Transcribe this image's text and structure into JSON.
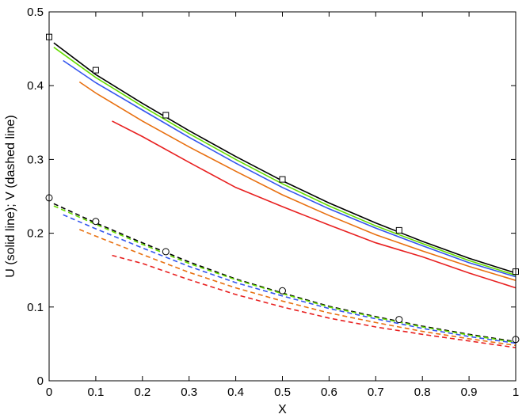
{
  "chart_data": {
    "type": "line",
    "xlabel": "X",
    "ylabel": "U (solid line); V (dashed line)",
    "xlim": [
      0,
      1
    ],
    "ylim": [
      0,
      0.5
    ],
    "xticks": [
      "0",
      "0.1",
      "0.2",
      "0.3",
      "0.4",
      "0.5",
      "0.6",
      "0.7",
      "0.8",
      "0.9",
      "1"
    ],
    "yticks": [
      "0",
      "0.1",
      "0.2",
      "0.3",
      "0.4",
      "0.5"
    ],
    "grid": false,
    "series": [
      {
        "kind": "U",
        "style": "solid",
        "color": "#000000",
        "x": [
          0.01,
          0.1,
          0.2,
          0.3,
          0.4,
          0.5,
          0.6,
          0.7,
          0.8,
          0.9,
          1.0
        ],
        "y": [
          0.458,
          0.415,
          0.376,
          0.339,
          0.304,
          0.271,
          0.241,
          0.214,
          0.189,
          0.166,
          0.146
        ]
      },
      {
        "kind": "U",
        "style": "solid",
        "color": "#66dd00",
        "x": [
          0.01,
          0.1,
          0.2,
          0.3,
          0.4,
          0.5,
          0.6,
          0.7,
          0.8,
          0.9,
          1.0
        ],
        "y": [
          0.452,
          0.411,
          0.372,
          0.335,
          0.3,
          0.267,
          0.237,
          0.21,
          0.186,
          0.163,
          0.143
        ]
      },
      {
        "kind": "U",
        "style": "solid",
        "color": "#3355ee",
        "x": [
          0.03,
          0.1,
          0.2,
          0.3,
          0.4,
          0.5,
          0.6,
          0.7,
          0.8,
          0.9,
          1.0
        ],
        "y": [
          0.434,
          0.404,
          0.367,
          0.33,
          0.295,
          0.262,
          0.233,
          0.207,
          0.183,
          0.16,
          0.141
        ]
      },
      {
        "kind": "U",
        "style": "solid",
        "color": "#e87010",
        "x": [
          0.065,
          0.1,
          0.2,
          0.3,
          0.4,
          0.5,
          0.6,
          0.7,
          0.8,
          0.9,
          1.0
        ],
        "y": [
          0.405,
          0.39,
          0.352,
          0.317,
          0.284,
          0.252,
          0.224,
          0.198,
          0.176,
          0.155,
          0.136
        ]
      },
      {
        "kind": "U",
        "style": "solid",
        "color": "#e82020",
        "x": [
          0.135,
          0.2,
          0.3,
          0.4,
          0.5,
          0.6,
          0.7,
          0.8,
          0.9,
          1.0
        ],
        "y": [
          0.352,
          0.331,
          0.296,
          0.262,
          0.236,
          0.211,
          0.187,
          0.168,
          0.146,
          0.126
        ]
      },
      {
        "kind": "V",
        "style": "dashed",
        "color": "#000000",
        "x": [
          0.01,
          0.1,
          0.2,
          0.3,
          0.4,
          0.5,
          0.6,
          0.7,
          0.8,
          0.9,
          1.0
        ],
        "y": [
          0.24,
          0.214,
          0.187,
          0.161,
          0.138,
          0.119,
          0.101,
          0.087,
          0.074,
          0.063,
          0.053
        ]
      },
      {
        "kind": "V",
        "style": "dashed",
        "color": "#66dd00",
        "x": [
          0.01,
          0.1,
          0.2,
          0.3,
          0.4,
          0.5,
          0.6,
          0.7,
          0.8,
          0.9,
          1.0
        ],
        "y": [
          0.237,
          0.212,
          0.185,
          0.159,
          0.137,
          0.118,
          0.1,
          0.086,
          0.073,
          0.062,
          0.052
        ]
      },
      {
        "kind": "V",
        "style": "dashed",
        "color": "#3355ee",
        "x": [
          0.03,
          0.1,
          0.2,
          0.3,
          0.4,
          0.5,
          0.6,
          0.7,
          0.8,
          0.9,
          1.0
        ],
        "y": [
          0.225,
          0.206,
          0.18,
          0.155,
          0.133,
          0.115,
          0.098,
          0.084,
          0.071,
          0.06,
          0.051
        ]
      },
      {
        "kind": "V",
        "style": "dashed",
        "color": "#e87010",
        "x": [
          0.065,
          0.1,
          0.2,
          0.3,
          0.4,
          0.5,
          0.6,
          0.7,
          0.8,
          0.9,
          1.0
        ],
        "y": [
          0.205,
          0.196,
          0.171,
          0.147,
          0.126,
          0.108,
          0.092,
          0.079,
          0.067,
          0.057,
          0.048
        ]
      },
      {
        "kind": "V",
        "style": "dashed",
        "color": "#e82020",
        "x": [
          0.135,
          0.2,
          0.3,
          0.4,
          0.5,
          0.6,
          0.7,
          0.8,
          0.9,
          1.0
        ],
        "y": [
          0.17,
          0.159,
          0.137,
          0.117,
          0.1,
          0.085,
          0.073,
          0.063,
          0.054,
          0.045
        ]
      }
    ],
    "markers": [
      {
        "kind": "U",
        "shape": "square",
        "x": [
          0.0,
          0.1,
          0.25,
          0.5,
          0.75,
          1.0
        ],
        "y": [
          0.466,
          0.421,
          0.36,
          0.273,
          0.204,
          0.148
        ]
      },
      {
        "kind": "V",
        "shape": "circle",
        "x": [
          0.0,
          0.1,
          0.25,
          0.5,
          0.75,
          1.0
        ],
        "y": [
          0.248,
          0.216,
          0.175,
          0.122,
          0.083,
          0.056
        ]
      }
    ]
  }
}
